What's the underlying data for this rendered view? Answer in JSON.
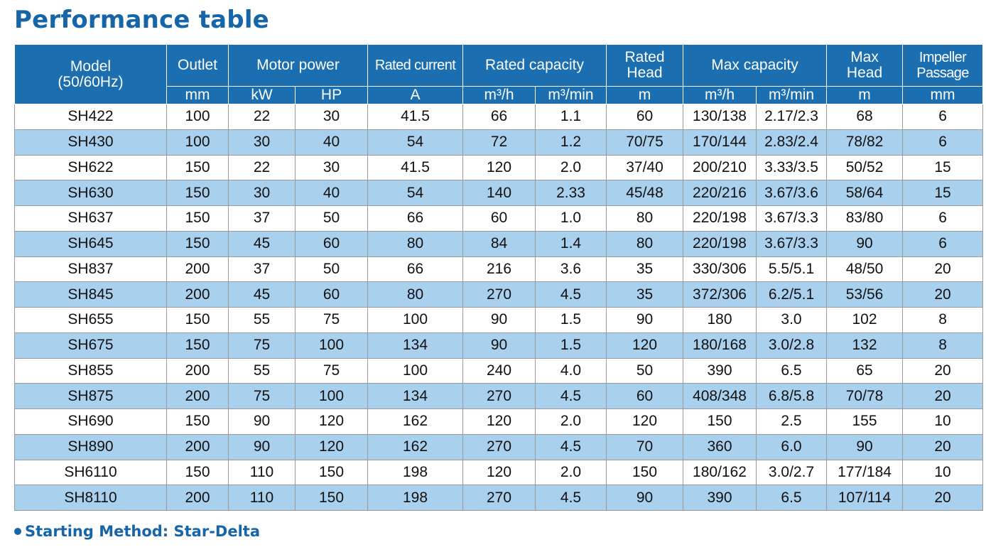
{
  "title": "Performance table",
  "header": {
    "model": "Model (50/60Hz)",
    "outlet": "Outlet",
    "motor_power": "Motor power",
    "rated_current": "Rated current",
    "rated_capacity": "Rated capacity",
    "rated_head": "Rated Head",
    "max_capacity": "Max capacity",
    "max_head": "Max Head",
    "impeller_passage": "Impeller Passage",
    "units": [
      "mm",
      "kW",
      "HP",
      "A",
      "m³/h",
      "m³/min",
      "m",
      "m³/h",
      "m³/min",
      "m",
      "mm"
    ]
  },
  "rows": [
    [
      "SH422",
      "100",
      "22",
      "30",
      "41.5",
      "66",
      "1.1",
      "60",
      "130/138",
      "2.17/2.3",
      "68",
      "6"
    ],
    [
      "SH430",
      "100",
      "30",
      "40",
      "54",
      "72",
      "1.2",
      "70/75",
      "170/144",
      "2.83/2.4",
      "78/82",
      "6"
    ],
    [
      "SH622",
      "150",
      "22",
      "30",
      "41.5",
      "120",
      "2.0",
      "37/40",
      "200/210",
      "3.33/3.5",
      "50/52",
      "15"
    ],
    [
      "SH630",
      "150",
      "30",
      "40",
      "54",
      "140",
      "2.33",
      "45/48",
      "220/216",
      "3.67/3.6",
      "58/64",
      "15"
    ],
    [
      "SH637",
      "150",
      "37",
      "50",
      "66",
      "60",
      "1.0",
      "80",
      "220/198",
      "3.67/3.3",
      "83/80",
      "6"
    ],
    [
      "SH645",
      "150",
      "45",
      "60",
      "80",
      "84",
      "1.4",
      "80",
      "220/198",
      "3.67/3.3",
      "90",
      "6"
    ],
    [
      "SH837",
      "200",
      "37",
      "50",
      "66",
      "216",
      "3.6",
      "35",
      "330/306",
      "5.5/5.1",
      "48/50",
      "20"
    ],
    [
      "SH845",
      "200",
      "45",
      "60",
      "80",
      "270",
      "4.5",
      "35",
      "372/306",
      "6.2/5.1",
      "53/56",
      "20"
    ],
    [
      "SH655",
      "150",
      "55",
      "75",
      "100",
      "90",
      "1.5",
      "90",
      "180",
      "3.0",
      "102",
      "8"
    ],
    [
      "SH675",
      "150",
      "75",
      "100",
      "134",
      "90",
      "1.5",
      "120",
      "180/168",
      "3.0/2.8",
      "132",
      "8"
    ],
    [
      "SH855",
      "200",
      "55",
      "75",
      "100",
      "240",
      "4.0",
      "50",
      "390",
      "6.5",
      "65",
      "20"
    ],
    [
      "SH875",
      "200",
      "75",
      "100",
      "134",
      "270",
      "4.5",
      "60",
      "408/348",
      "6.8/5.8",
      "70/78",
      "20"
    ],
    [
      "SH690",
      "150",
      "90",
      "120",
      "162",
      "120",
      "2.0",
      "120",
      "150",
      "2.5",
      "155",
      "10"
    ],
    [
      "SH890",
      "200",
      "90",
      "120",
      "162",
      "270",
      "4.5",
      "70",
      "360",
      "6.0",
      "90",
      "20"
    ],
    [
      "SH6110",
      "150",
      "110",
      "150",
      "198",
      "120",
      "2.0",
      "150",
      "180/162",
      "3.0/2.7",
      "177/184",
      "10"
    ],
    [
      "SH8110",
      "200",
      "110",
      "150",
      "198",
      "270",
      "4.5",
      "90",
      "390",
      "6.5",
      "107/114",
      "20"
    ]
  ],
  "footnote": "Starting Method: Star-Delta",
  "colors": {
    "title": "#1565a8",
    "header_bg": "#1b6fb0",
    "row_alt_bg": "#a9d1ee"
  }
}
